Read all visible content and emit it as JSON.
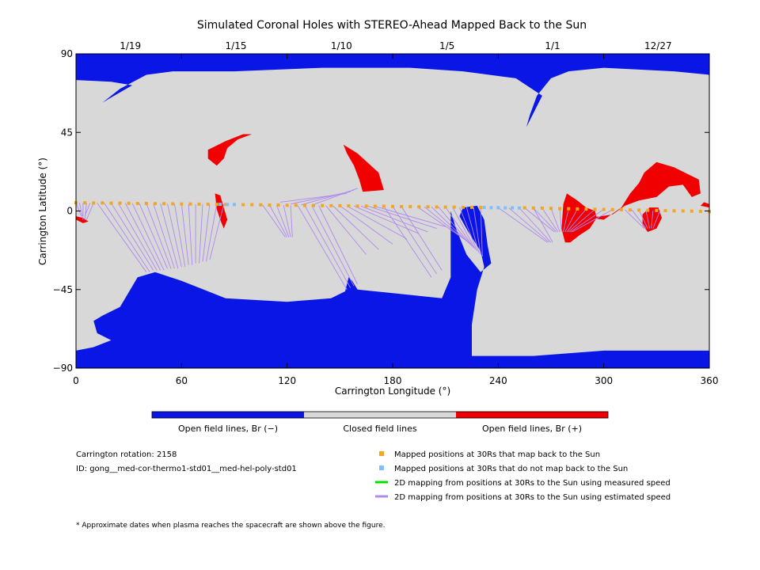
{
  "chart_data": {
    "type": "heatmap",
    "title": "Simulated Coronal Holes with STEREO-Ahead Mapped Back to the Sun",
    "xlabel": "Carrington Longitude (°)",
    "ylabel": "Carrington Latitude (°)",
    "xlim": [
      0,
      360
    ],
    "ylim": [
      -90,
      90
    ],
    "x_ticks": [
      0,
      60,
      120,
      180,
      240,
      300,
      360
    ],
    "y_ticks": [
      90,
      45,
      0,
      -45,
      -90
    ],
    "y_tick_labels": [
      "90",
      "45",
      "0",
      "−45",
      "−90"
    ],
    "top_axis_dates": [
      {
        "label": "1/19",
        "lon": 30
      },
      {
        "label": "1/15",
        "lon": 90
      },
      {
        "label": "1/10",
        "lon": 150
      },
      {
        "label": "1/5",
        "lon": 210
      },
      {
        "label": "1/1",
        "lon": 270
      },
      {
        "label": "12/27",
        "lon": 330
      }
    ],
    "colors": {
      "open_negative": "#0a16e6",
      "closed": "#d8d8d8",
      "open_positive": "#f00000",
      "mapped": "#f4a623",
      "unmapped": "#7fbfff",
      "measured_speed": "#00e000",
      "estimated_speed": "#b088f0"
    },
    "colorbar": [
      {
        "label": "Open field lines, Br (−)",
        "color": "#0a16e6"
      },
      {
        "label": "Closed field lines",
        "color": "#d8d8d8"
      },
      {
        "label": "Open field lines, Br (+)",
        "color": "#f00000"
      }
    ],
    "regions": {
      "negative_holes": [
        [
          [
            0,
            90
          ],
          [
            360,
            90
          ],
          [
            360,
            78
          ],
          [
            340,
            80
          ],
          [
            300,
            82
          ],
          [
            280,
            80
          ],
          [
            270,
            76
          ],
          [
            262,
            66
          ],
          [
            258,
            55
          ],
          [
            256,
            48
          ],
          [
            265,
            66
          ],
          [
            250,
            76
          ],
          [
            220,
            80
          ],
          [
            190,
            82
          ],
          [
            140,
            82
          ],
          [
            90,
            80
          ],
          [
            55,
            80
          ],
          [
            40,
            78
          ],
          [
            25,
            70
          ],
          [
            15,
            62
          ],
          [
            20,
            65
          ],
          [
            32,
            72
          ],
          [
            20,
            74
          ],
          [
            0,
            75
          ]
        ],
        [
          [
            0,
            -90
          ],
          [
            360,
            -90
          ],
          [
            360,
            -80
          ],
          [
            300,
            -80
          ],
          [
            260,
            -83
          ],
          [
            225,
            -83
          ],
          [
            225,
            -65
          ],
          [
            228,
            -45
          ],
          [
            232,
            -32
          ],
          [
            230,
            -23
          ],
          [
            223,
            -12
          ],
          [
            218,
            -3
          ],
          [
            220,
            2
          ],
          [
            228,
            3
          ],
          [
            232,
            -5
          ],
          [
            234,
            -20
          ],
          [
            236,
            -30
          ],
          [
            230,
            -35
          ],
          [
            222,
            -25
          ],
          [
            216,
            -10
          ],
          [
            213,
            0
          ],
          [
            213,
            -38
          ],
          [
            208,
            -50
          ],
          [
            180,
            -47
          ],
          [
            160,
            -45
          ],
          [
            157,
            -40
          ],
          [
            155,
            -38
          ],
          [
            153,
            -46
          ],
          [
            145,
            -50
          ],
          [
            120,
            -52
          ],
          [
            85,
            -50
          ],
          [
            60,
            -40
          ],
          [
            45,
            -35
          ],
          [
            35,
            -38
          ],
          [
            25,
            -55
          ],
          [
            15,
            -60
          ],
          [
            10,
            -63
          ],
          [
            12,
            -70
          ],
          [
            20,
            -74
          ],
          [
            10,
            -78
          ],
          [
            0,
            -80
          ]
        ]
      ],
      "positive_holes": [
        [
          [
            0,
            -5
          ],
          [
            0,
            -3
          ],
          [
            4,
            -4
          ],
          [
            7,
            -6
          ],
          [
            4,
            -7
          ]
        ],
        [
          [
            75,
            35
          ],
          [
            85,
            40
          ],
          [
            95,
            44
          ],
          [
            100,
            44
          ],
          [
            92,
            41
          ],
          [
            86,
            36
          ],
          [
            84,
            30
          ],
          [
            80,
            26
          ],
          [
            75,
            30
          ]
        ],
        [
          [
            152,
            38
          ],
          [
            160,
            33
          ],
          [
            172,
            22
          ],
          [
            175,
            12
          ],
          [
            163,
            11
          ],
          [
            161,
            18
          ],
          [
            158,
            26
          ],
          [
            154,
            33
          ]
        ],
        [
          [
            79,
            10
          ],
          [
            80,
            1
          ],
          [
            82,
            -5
          ],
          [
            84,
            -10
          ],
          [
            86,
            -5
          ],
          [
            84,
            2
          ],
          [
            82,
            9
          ]
        ],
        [
          [
            276,
            -10
          ],
          [
            278,
            -18
          ],
          [
            281,
            -18
          ],
          [
            286,
            -14
          ],
          [
            292,
            -10
          ],
          [
            296,
            -4
          ],
          [
            295,
            0
          ],
          [
            290,
            2
          ],
          [
            285,
            6
          ],
          [
            279,
            10
          ],
          [
            277,
            4
          ]
        ],
        [
          [
            292,
            -4
          ],
          [
            300,
            -5
          ],
          [
            310,
            2
          ],
          [
            315,
            10
          ],
          [
            320,
            16
          ],
          [
            323,
            22
          ],
          [
            330,
            28
          ],
          [
            340,
            25
          ],
          [
            346,
            22
          ],
          [
            354,
            18
          ],
          [
            355,
            10
          ],
          [
            350,
            8
          ],
          [
            345,
            15
          ],
          [
            337,
            14
          ],
          [
            330,
            8
          ],
          [
            320,
            6
          ],
          [
            312,
            3
          ],
          [
            305,
            -2
          ]
        ],
        [
          [
            322,
            -8
          ],
          [
            325,
            -12
          ],
          [
            330,
            -10
          ],
          [
            333,
            -4
          ],
          [
            331,
            2
          ],
          [
            326,
            2
          ],
          [
            322,
            -2
          ]
        ],
        [
          [
            355,
            3
          ],
          [
            360,
            2
          ],
          [
            360,
            4
          ],
          [
            357,
            5
          ]
        ]
      ]
    },
    "mapped_positions": {
      "name": "Mapped positions at 30Rs that map back to the Sun",
      "lon": [
        0,
        5,
        10,
        15,
        20,
        25,
        30,
        35,
        40,
        45,
        50,
        55,
        60,
        65,
        70,
        75,
        80,
        85,
        90,
        95,
        100,
        105,
        110,
        115,
        120,
        125,
        130,
        135,
        140,
        145,
        150,
        155,
        160,
        165,
        170,
        175,
        180,
        185,
        190,
        195,
        200,
        205,
        210,
        215,
        220,
        225,
        230,
        255,
        260,
        265,
        270,
        275,
        280,
        285,
        290,
        295,
        300,
        305,
        310,
        315,
        320,
        325,
        330,
        335,
        340,
        345,
        350,
        355,
        360
      ],
      "lat": [
        4.7,
        4.7,
        4.6,
        4.6,
        4.5,
        4.5,
        4.4,
        4.3,
        4.3,
        4.2,
        4.2,
        4.1,
        4.0,
        4.0,
        3.9,
        3.9,
        3.8,
        3.7,
        3.7,
        3.6,
        3.6,
        3.5,
        3.4,
        3.4,
        3.3,
        3.3,
        3.2,
        3.1,
        3.1,
        3.0,
        3.0,
        2.9,
        2.8,
        2.8,
        2.7,
        2.7,
        2.6,
        2.5,
        2.5,
        2.4,
        2.4,
        2.3,
        2.2,
        2.2,
        2.1,
        2.1,
        2.0,
        1.8,
        1.7,
        1.6,
        1.5,
        1.4,
        1.3,
        1.2,
        1.1,
        1.0,
        0.9,
        0.8,
        0.7,
        0.6,
        0.5,
        0.4,
        0.3,
        0.2,
        0.1,
        0.0,
        -0.1,
        -0.2,
        -0.3
      ]
    },
    "unmapped_positions": {
      "name": "Mapped positions at 30Rs that do not map back to the Sun",
      "lon": [
        82,
        86,
        90,
        232,
        236,
        240,
        244,
        248,
        252
      ],
      "lat": [
        3.8,
        3.7,
        3.7,
        2.0,
        1.9,
        1.9,
        1.8,
        1.8,
        1.7
      ]
    },
    "mappings": {
      "name": "2D mapping from positions at 30Rs to the Sun using estimated speed",
      "lines": [
        [
          0,
          4.7,
          3,
          -3
        ],
        [
          2,
          4.7,
          4,
          -5
        ],
        [
          4,
          4.7,
          4,
          -3
        ],
        [
          6,
          4.7,
          5,
          -5
        ],
        [
          8,
          4.6,
          5,
          -3
        ],
        [
          10,
          4.6,
          6,
          -5
        ],
        [
          12,
          4.6,
          40,
          -35
        ],
        [
          16,
          4.6,
          42,
          -35
        ],
        [
          20,
          4.5,
          44,
          -34
        ],
        [
          24,
          4.5,
          46,
          -34
        ],
        [
          28,
          4.5,
          48,
          -34
        ],
        [
          32,
          4.4,
          50,
          -34
        ],
        [
          36,
          4.3,
          52,
          -33
        ],
        [
          40,
          4.3,
          54,
          -33
        ],
        [
          44,
          4.2,
          56,
          -33
        ],
        [
          48,
          4.2,
          58,
          -33
        ],
        [
          52,
          4.1,
          60,
          -32
        ],
        [
          56,
          4.0,
          62,
          -32
        ],
        [
          60,
          4.0,
          64,
          -31
        ],
        [
          64,
          4.0,
          66,
          -31
        ],
        [
          68,
          3.9,
          68,
          -30
        ],
        [
          72,
          3.9,
          70,
          -30
        ],
        [
          76,
          3.9,
          72,
          -29
        ],
        [
          80,
          3.8,
          74,
          -29
        ],
        [
          84,
          3.7,
          76,
          -28
        ],
        [
          106,
          3.5,
          119,
          -15
        ],
        [
          110,
          3.4,
          120,
          -15
        ],
        [
          114,
          3.4,
          121,
          -15
        ],
        [
          118,
          3.3,
          122,
          -15
        ],
        [
          122,
          3.3,
          123,
          -15
        ],
        [
          126,
          3.2,
          154,
          -45
        ],
        [
          130,
          3.2,
          156,
          -44
        ],
        [
          134,
          3.1,
          158,
          -43
        ],
        [
          138,
          3.1,
          160,
          -42
        ],
        [
          142,
          3.1,
          165,
          -25
        ],
        [
          146,
          3.0,
          172,
          -22
        ],
        [
          150,
          3.0,
          180,
          -19
        ],
        [
          154,
          2.9,
          188,
          -16
        ],
        [
          158,
          2.8,
          195,
          -13
        ],
        [
          162,
          2.8,
          200,
          -12
        ],
        [
          166,
          2.8,
          205,
          -10
        ],
        [
          170,
          2.7,
          210,
          -9
        ],
        [
          175,
          2.7,
          202,
          -38
        ],
        [
          180,
          2.6,
          205,
          -36
        ],
        [
          185,
          2.5,
          208,
          -34
        ],
        [
          194,
          2.4,
          222,
          -17
        ],
        [
          198,
          2.4,
          223,
          -18
        ],
        [
          202,
          2.4,
          224,
          -19
        ],
        [
          206,
          2.3,
          225,
          -20
        ],
        [
          210,
          2.2,
          226,
          -21
        ],
        [
          214,
          2.2,
          227,
          -22
        ],
        [
          218,
          2.1,
          228,
          -23
        ],
        [
          222,
          2.1,
          229,
          -24
        ],
        [
          226,
          2.0,
          230,
          -25
        ],
        [
          230,
          2.0,
          231,
          -26
        ],
        [
          116,
          5,
          154,
          10
        ],
        [
          122,
          4,
          156,
          11
        ],
        [
          128,
          3.5,
          158,
          12
        ],
        [
          134,
          3.3,
          160,
          13
        ],
        [
          255,
          1.8,
          272,
          -12
        ],
        [
          260,
          1.7,
          273,
          -12
        ],
        [
          265,
          1.6,
          274,
          -12
        ],
        [
          270,
          1.5,
          275,
          -12
        ],
        [
          275,
          1.4,
          276,
          -12
        ],
        [
          280,
          1.3,
          277,
          -12
        ],
        [
          285,
          1.2,
          278,
          -12
        ],
        [
          290,
          1.1,
          279,
          -12
        ],
        [
          295,
          1.0,
          280,
          -12
        ],
        [
          300,
          0.9,
          281,
          -12
        ],
        [
          305,
          0.8,
          282,
          -12
        ],
        [
          312,
          0.7,
          323,
          -10
        ],
        [
          316,
          0.6,
          324,
          -10
        ],
        [
          320,
          0.5,
          325,
          -10
        ],
        [
          324,
          0.4,
          326,
          -10
        ],
        [
          328,
          0.3,
          327,
          -10
        ],
        [
          332,
          0.2,
          328,
          -10
        ],
        [
          240,
          1.9,
          268,
          -18
        ],
        [
          246,
          1.8,
          269,
          -18
        ],
        [
          252,
          1.7,
          270,
          -18
        ],
        [
          260,
          1.7,
          271,
          -18
        ]
      ]
    },
    "legend": [
      {
        "label": "Mapped positions at 30Rs that map back to the Sun",
        "marker": "square",
        "color": "#f4a623"
      },
      {
        "label": "Mapped positions at 30Rs that do not map back to the Sun",
        "marker": "square",
        "color": "#7fbfff"
      },
      {
        "label": "2D mapping from positions at 30Rs to the Sun using measured speed",
        "marker": "line",
        "color": "#00e000"
      },
      {
        "label": "2D mapping from positions at 30Rs to the Sun using estimated speed",
        "marker": "line",
        "color": "#b088f0"
      }
    ]
  },
  "info": {
    "rotation": "Carrington rotation: 2158",
    "model_id": "ID: gong__med-cor-thermo1-std01__med-hel-poly-std01"
  },
  "footnote": "* Approximate dates when plasma reaches the spacecraft are shown above the figure."
}
